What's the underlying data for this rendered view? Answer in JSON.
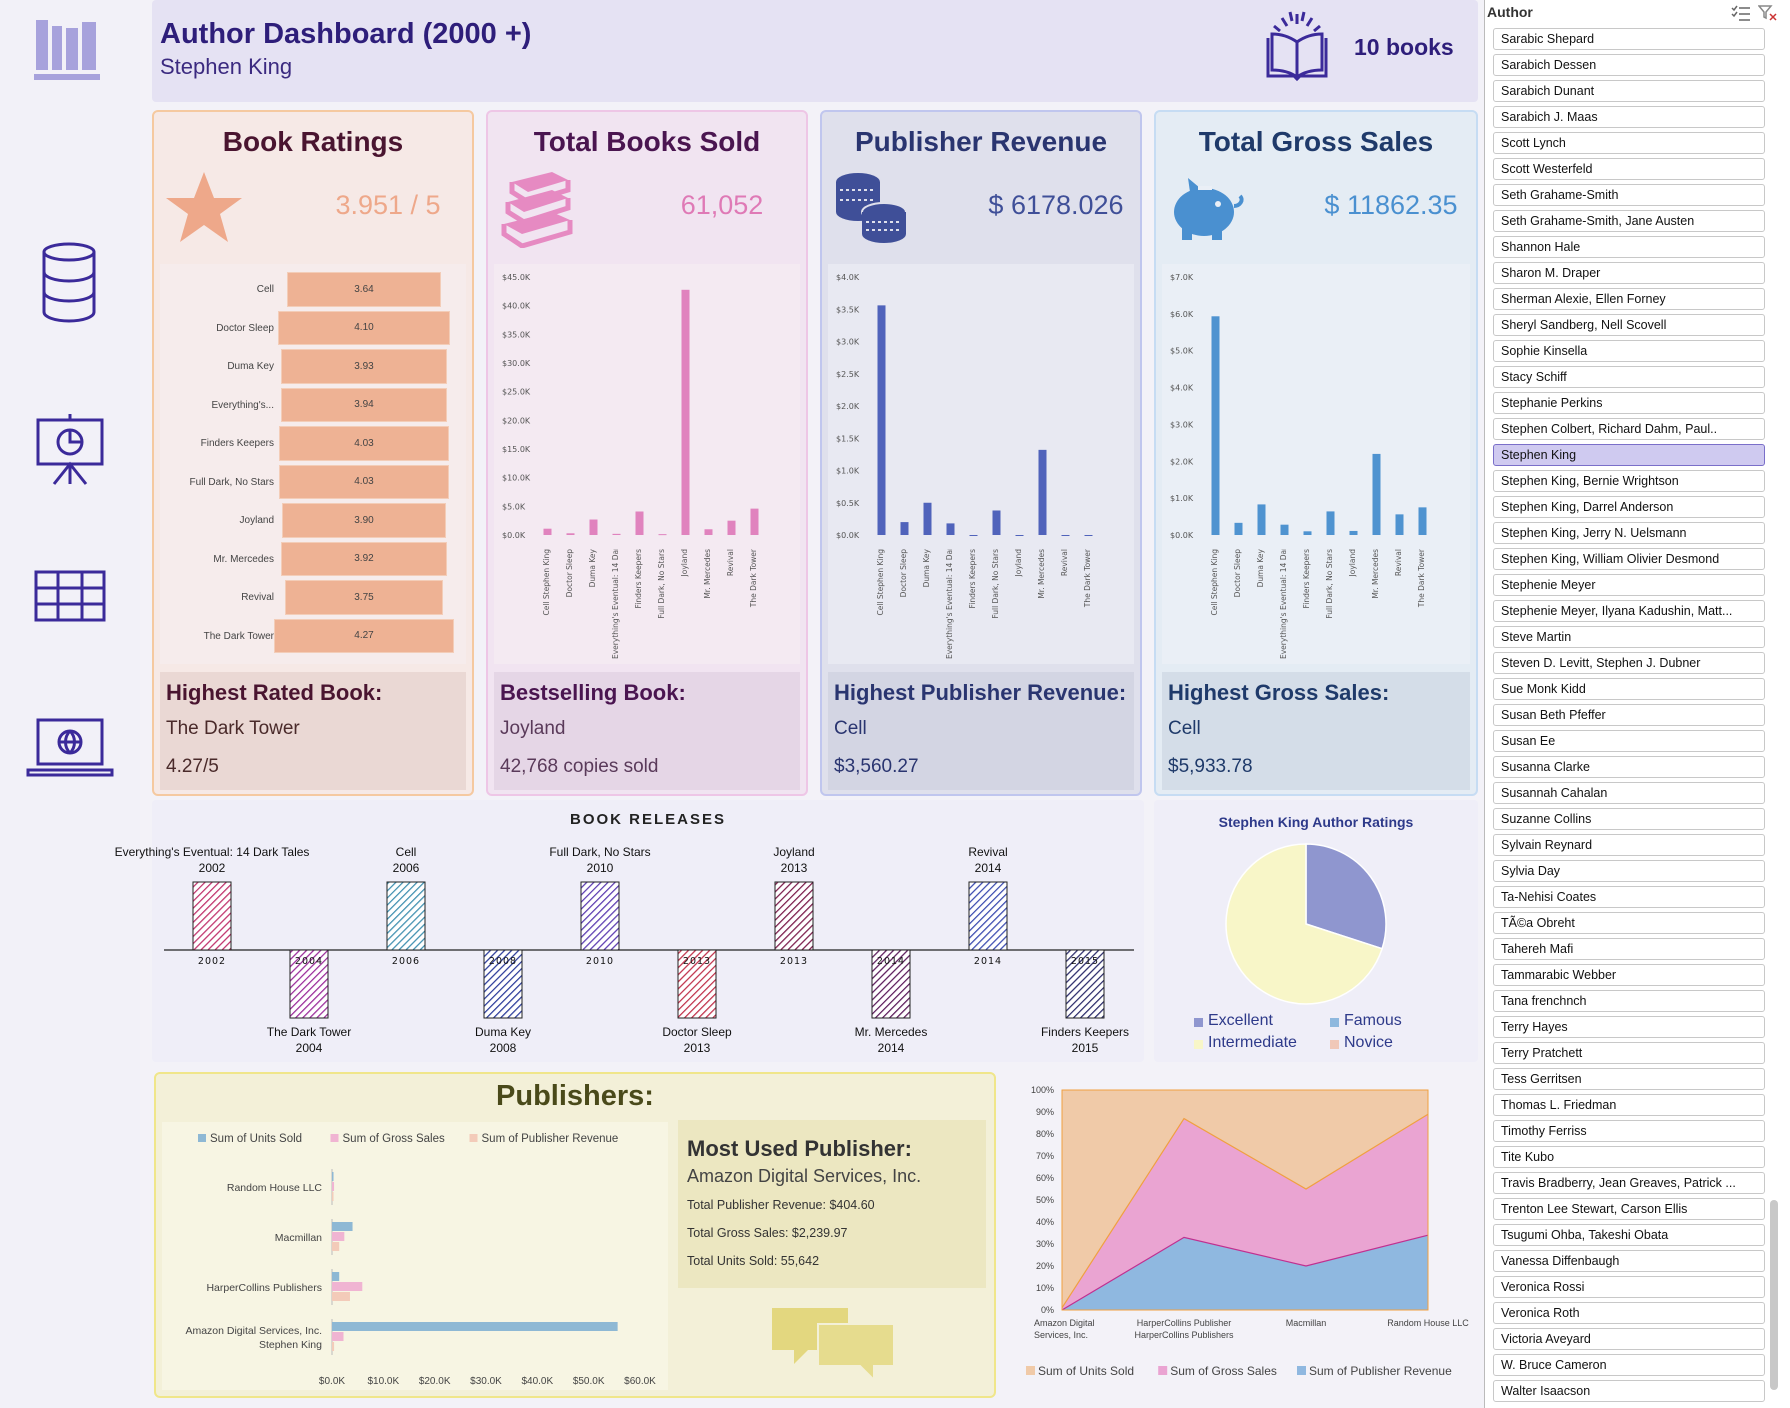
{
  "header": {
    "title": "Author Dashboard (2000 +)",
    "author": "Stephen King",
    "books_count": "10 books"
  },
  "nav": {
    "items": [
      "library-icon",
      "database-icon",
      "presentation-chart-icon",
      "table-icon",
      "laptop-globe-icon"
    ]
  },
  "cards": [
    {
      "title": "Book Ratings",
      "kpi": "3.951 / 5",
      "foot_title": "Highest Rated Book:",
      "foot_line1": "The Dark Tower",
      "foot_line2": "4.27/5",
      "icon": "star-icon"
    },
    {
      "title": "Total Books Sold",
      "kpi": "61,052",
      "foot_title": "Bestselling Book:",
      "foot_line1": "Joyland",
      "foot_line2": "42,768 copies sold",
      "icon": "books-icon"
    },
    {
      "title": "Publisher Revenue",
      "kpi": "$ 6178.026",
      "foot_title": "Highest Publisher Revenue:",
      "foot_line1": "Cell",
      "foot_line2": "$3,560.27",
      "icon": "coins-icon"
    },
    {
      "title": "Total Gross Sales",
      "kpi": "$ 11862.35",
      "foot_title": "Highest Gross Sales:",
      "foot_line1": "Cell",
      "foot_line2": "$5,933.78",
      "icon": "piggy-bank-icon"
    }
  ],
  "chart_data": [
    {
      "type": "bar",
      "title": "",
      "orientation": "horizontal",
      "categories": [
        "Cell",
        "Doctor Sleep",
        "Duma Key",
        "Everything's...",
        "Finders Keepers",
        "Full Dark, No Stars",
        "Joyland",
        "Mr. Mercedes",
        "Revival",
        "The Dark Tower"
      ],
      "values": [
        3.64,
        4.1,
        3.93,
        3.94,
        4.03,
        4.03,
        3.9,
        3.92,
        3.75,
        4.27
      ],
      "labels": [
        "3.64",
        "4.10",
        "3.93",
        "3.94",
        "4.03",
        "4.03",
        "3.90",
        "3.92",
        "3.75",
        "4.27"
      ],
      "color": "#eeb294"
    },
    {
      "type": "bar",
      "title": "",
      "categories": [
        "Cell",
        "Doctor Sleep",
        "Duma Key",
        "Everything's Eventual: 14 Dark Tales",
        "Finders Keepers",
        "Full Dark, No Stars",
        "Joyland",
        "Mr. Mercedes",
        "Revival",
        "The Dark Tower"
      ],
      "cat_labels": [
        "Cell\nStephen King",
        "Doctor Sleep",
        "Duma Key",
        "Everything's Eventual: 14 Dark Tales",
        "Finders Keepers",
        "Full Dark, No Stars",
        "Joyland",
        "Mr. Mercedes",
        "Revival",
        "The Dark Tower"
      ],
      "values": [
        1100,
        300,
        2700,
        200,
        4100,
        150,
        42768,
        1000,
        2500,
        4600
      ],
      "yticks": [
        "$0.0K",
        "$5.0K",
        "$10.0K",
        "$15.0K",
        "$20.0K",
        "$25.0K",
        "$30.0K",
        "$35.0K",
        "$40.0K",
        "$45.0K"
      ],
      "ylim": [
        0,
        45000
      ],
      "color": "#e083be"
    },
    {
      "type": "bar",
      "title": "",
      "categories": [
        "Cell",
        "Doctor Sleep",
        "Duma Key",
        "Everything's Eventual: 14 Dark Tales",
        "Finders Keepers",
        "Full Dark, No Stars",
        "Joyland",
        "Mr. Mercedes",
        "Revival",
        "The Dark Tower"
      ],
      "cat_labels": [
        "Cell\nStephen King",
        "Doctor Sleep",
        "Duma Key",
        "Everything's Eventual: 14 Dark Tales",
        "Finders Keepers",
        "Full Dark, No Stars",
        "Joyland",
        "Mr. Mercedes",
        "Revival",
        "The Dark Tower"
      ],
      "values": [
        3560.27,
        200,
        500,
        180,
        0,
        380,
        0,
        1320,
        0,
        0
      ],
      "yticks": [
        "$0.0K",
        "$0.5K",
        "$1.0K",
        "$1.5K",
        "$2.0K",
        "$2.5K",
        "$3.0K",
        "$3.5K",
        "$4.0K"
      ],
      "ylim": [
        0,
        4000
      ],
      "color": "#5063bb"
    },
    {
      "type": "bar",
      "title": "",
      "categories": [
        "Cell",
        "Doctor Sleep",
        "Duma Key",
        "Everything's Eventual: 14 Dark Tales",
        "Finders Keepers",
        "Full Dark, No Stars",
        "Joyland",
        "Mr. Mercedes",
        "Revival",
        "The Dark Tower"
      ],
      "cat_labels": [
        "Cell\nStephen King",
        "Doctor Sleep",
        "Duma Key",
        "Everything's Eventual: 14 Dark Tales",
        "Finders Keepers",
        "Full Dark, No Stars",
        "Joyland",
        "Mr. Mercedes",
        "Revival",
        "The Dark Tower"
      ],
      "values": [
        5933.78,
        330,
        830,
        280,
        100,
        640,
        110,
        2200,
        560,
        750
      ],
      "yticks": [
        "$0.0K",
        "$1.0K",
        "$2.0K",
        "$3.0K",
        "$4.0K",
        "$5.0K",
        "$6.0K",
        "$7.0K"
      ],
      "ylim": [
        0,
        7000
      ],
      "color": "#4f93d0"
    },
    {
      "type": "pie",
      "title": "Stephen King Author Ratings",
      "series": [
        {
          "name": "Excellent",
          "value": 30,
          "color": "#8f96cf"
        },
        {
          "name": "Famous",
          "value": 0,
          "color": "#8eb8de"
        },
        {
          "name": "Intermediate",
          "value": 70,
          "color": "#f8f6c8"
        },
        {
          "name": "Novice",
          "value": 0,
          "color": "#f0c8b8"
        }
      ]
    },
    {
      "type": "bar",
      "title": "",
      "orientation": "horizontal",
      "categories": [
        "Random House LLC",
        "Macmillan",
        "HarperCollins Publishers",
        "Amazon Digital Services, Inc.\nStephen King"
      ],
      "series": [
        {
          "name": "Sum of Units Sold",
          "values": [
            200,
            4000,
            1400,
            55642
          ],
          "color": "#8eb8d4"
        },
        {
          "name": "Sum of Gross Sales",
          "values": [
            400,
            2400,
            5900,
            2239.97
          ],
          "color": "#f0b4d2"
        },
        {
          "name": "Sum of Publisher Revenue",
          "values": [
            200,
            1400,
            3500,
            404.6
          ],
          "color": "#f3cbb9"
        }
      ],
      "xticks": [
        "$0.0K",
        "$10.0K",
        "$20.0K",
        "$30.0K",
        "$40.0K",
        "$50.0K",
        "$60.0K"
      ],
      "xlim": [
        0,
        60000
      ]
    },
    {
      "type": "area",
      "title": "",
      "stacked_percent": true,
      "categories": [
        "Amazon Digital Services, Inc.",
        "HarperCollins Publishers",
        "Macmillan",
        "Random House LLC"
      ],
      "series": [
        {
          "name": "Sum of Units Sold",
          "values": [
            1,
            13,
            45,
            11
          ],
          "color": "#f0caa8"
        },
        {
          "name": "Sum of Gross Sales",
          "values": [
            1,
            54,
            35,
            55
          ],
          "color": "#eaa4d2"
        },
        {
          "name": "Sum of Publisher Revenue",
          "values": [
            0,
            33,
            20,
            34
          ],
          "color": "#8fb8e0"
        }
      ],
      "yticks": [
        "0%",
        "10%",
        "20%",
        "30%",
        "40%",
        "50%",
        "60%",
        "70%",
        "80%",
        "90%",
        "100%"
      ],
      "ylim": [
        0,
        100
      ]
    }
  ],
  "releases": {
    "title": "BOOK RELEASES",
    "above": [
      {
        "name": "Everything's Eventual: 14 Dark Tales",
        "year": "2002"
      },
      {
        "name": "Cell",
        "year": "2006"
      },
      {
        "name": "Full Dark, No Stars",
        "year": "2010"
      },
      {
        "name": "Joyland",
        "year": "2013"
      },
      {
        "name": "Revival",
        "year": "2014"
      }
    ],
    "below": [
      {
        "name": "The Dark Tower",
        "year": "2004"
      },
      {
        "name": "Duma Key",
        "year": "2008"
      },
      {
        "name": "Doctor Sleep",
        "year": "2013"
      },
      {
        "name": "Mr. Mercedes",
        "year": "2014"
      },
      {
        "name": "Finders Keepers",
        "year": "2015"
      }
    ],
    "axis_years": [
      "2002",
      "2004",
      "2006",
      "2008",
      "2010",
      "2013",
      "2013",
      "2014",
      "2014",
      "2015"
    ],
    "hatch_colors": [
      "#c0306b",
      "#9a2a9a",
      "#3f8fb0",
      "#2a3a9a",
      "#5a3ab0",
      "#c0304a",
      "#7a1a4a",
      "#5a1a5a",
      "#3a4ab0",
      "#2a2a6a"
    ]
  },
  "publishers": {
    "title": "Publishers:",
    "most_used_label": "Most Used Publisher:",
    "most_used_name": "Amazon Digital Services,  Inc.",
    "revenue": "Total Publisher Revenue: $404.60",
    "gross": "Total Gross Sales: $2,239.97",
    "units": "Total Units Sold: 55,642"
  },
  "slicer": {
    "title": "Author",
    "items": [
      "Sarabic Shepard",
      "Sarabich Dessen",
      "Sarabich Dunant",
      "Sarabich J. Maas",
      "Scott Lynch",
      "Scott Westerfeld",
      "Seth Grahame-Smith",
      "Seth Grahame-Smith,  Jane Austen",
      "Shannon Hale",
      "Sharon M. Draper",
      "Sherman Alexie, Ellen Forney",
      "Sheryl Sandberg, Nell Scovell",
      "Sophie Kinsella",
      "Stacy Schiff",
      "Stephanie Perkins",
      "Stephen Colbert, Richard Dahm,  Paul..",
      "Stephen King",
      "Stephen King, Bernie Wrightson",
      "Stephen King, Darrel Anderson",
      "Stephen King, Jerry N. Uelsmann",
      "Stephen King, William Olivier Desmond",
      "Stephenie Meyer",
      "Stephenie Meyer,  Ilyana Kadushin, Matt...",
      "Steve Martin",
      "Steven D. Levitt, Stephen J. Dubner",
      "Sue Monk Kidd",
      "Susan Beth Pfeffer",
      "Susan Ee",
      "Susanna Clarke",
      "Susannah Cahalan",
      "Suzanne Collins",
      "Sylvain Reynard",
      "Sylvia Day",
      "Ta-Nehisi Coates",
      "TÃ©a Obreht",
      "Tahereh Mafi",
      "Tammarabic  Webber",
      "Tana frenchnch",
      "Terry Hayes",
      "Terry Pratchett",
      "Tess Gerritsen",
      "Thomas L. Friedman",
      "Timothy Ferriss",
      "Tite Kubo",
      "Travis Bradberry, Jean Greaves,  Patrick ...",
      "Trenton Lee Stewart, Carson Ellis",
      "Tsugumi Ohba, Takeshi Obata",
      "Vanessa Diffenbaugh",
      "Veronica Rossi",
      "Veronica Roth",
      "Victoria Aveyard",
      "W. Bruce Cameron",
      "Walter Isaacson"
    ],
    "selected": "Stephen King"
  }
}
